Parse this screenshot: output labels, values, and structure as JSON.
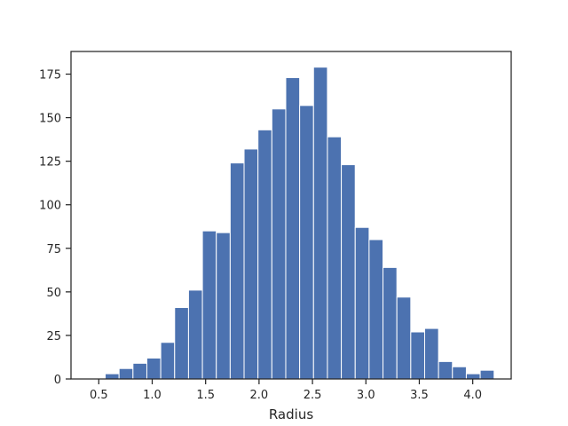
{
  "chart_data": {
    "type": "bar",
    "title": "",
    "xlabel": "Radius",
    "ylabel": "",
    "bar_color": "#4c72b0",
    "edge_color": "#ffffff",
    "grid": false,
    "xlim": [
      0.24,
      4.36
    ],
    "ylim": [
      0,
      188
    ],
    "xticks": [
      "0.5",
      "1.0",
      "1.5",
      "2.0",
      "2.5",
      "3.0",
      "3.5",
      "4.0"
    ],
    "yticks": [
      "0",
      "25",
      "50",
      "75",
      "100",
      "125",
      "150",
      "175"
    ],
    "bin_edges": [
      0.43,
      0.56,
      0.69,
      0.82,
      0.95,
      1.08,
      1.21,
      1.34,
      1.47,
      1.6,
      1.73,
      1.86,
      1.99,
      2.12,
      2.25,
      2.38,
      2.51,
      2.64,
      2.77,
      2.9,
      3.03,
      3.16,
      3.29,
      3.42,
      3.55,
      3.68,
      3.81,
      3.94,
      4.07,
      4.2,
      4.33
    ],
    "counts": [
      0,
      3,
      6,
      9,
      12,
      21,
      41,
      51,
      85,
      84,
      124,
      132,
      143,
      155,
      173,
      157,
      179,
      139,
      123,
      87,
      80,
      64,
      47,
      27,
      29,
      10,
      7,
      3,
      5,
      0
    ]
  }
}
